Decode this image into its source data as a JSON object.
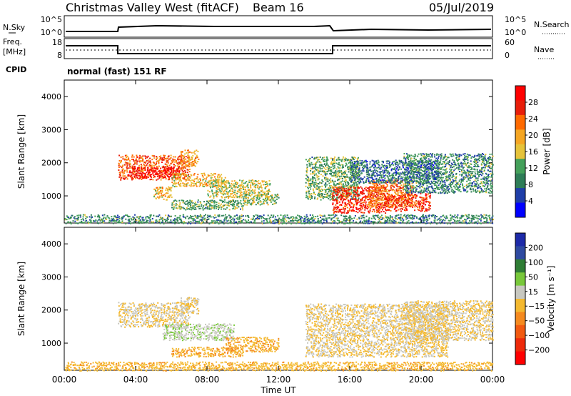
{
  "header": {
    "station": "Christmas Valley West (fitACF)",
    "beam": "Beam 16",
    "date": "05/Jul/2019"
  },
  "status_labels": {
    "nsky": "N.Sky",
    "nsearch": "N.Search",
    "freq_line1": "Freq.",
    "freq_line2": "[MHz]",
    "nave": "Nave",
    "cpid": "CPID",
    "cpid_value": "normal (fast) 151 RF"
  },
  "noise_panel": {
    "left_ticks": [
      "10^5",
      "10^0"
    ],
    "right_ticks": [
      "10^5",
      "10^0"
    ]
  },
  "freq_panel": {
    "left_ticks": [
      "18",
      "8"
    ],
    "right_ticks": [
      "60",
      "0"
    ]
  },
  "colors": {
    "power_scale": [
      "#0000ff",
      "#1f3ea8",
      "#2e7d57",
      "#44a05a",
      "#e6c33a",
      "#f5a623",
      "#ff6a00",
      "#e81e0a",
      "#ff0000"
    ],
    "velocity_scale": [
      "#1d2aa8",
      "#2e4aa0",
      "#2f7d35",
      "#78c83a",
      "#c8c8c0",
      "#f4b930",
      "#f58a1f",
      "#f25a10",
      "#ee2a0a",
      "#ff0000"
    ]
  },
  "chart_data": [
    {
      "type": "heatmap",
      "quantity": "Power",
      "ylabel": "Slant Range [km]",
      "xlabel": "",
      "x_ticks": [
        "00:00",
        "04:00",
        "08:00",
        "12:00",
        "16:00",
        "20:00",
        "00:00"
      ],
      "xlim_hours": [
        0,
        24
      ],
      "y_ticks": [
        1000,
        2000,
        3000,
        4000
      ],
      "ylim": [
        180,
        4500
      ],
      "colorbar": {
        "label": "Power [dB]",
        "ticks": [
          4,
          8,
          12,
          16,
          20,
          24,
          28
        ],
        "range": [
          0,
          32
        ]
      },
      "regions": [
        {
          "t_start": 3.0,
          "t_end": 7.0,
          "r_low": 1500,
          "r_high": 2250,
          "value": 24
        },
        {
          "t_start": 3.5,
          "t_end": 6.5,
          "r_low": 1550,
          "r_high": 1900,
          "value": 30
        },
        {
          "t_start": 6.0,
          "t_end": 9.0,
          "r_low": 1300,
          "r_high": 1700,
          "value": 18
        },
        {
          "t_start": 8.0,
          "t_end": 11.5,
          "r_low": 950,
          "r_high": 1500,
          "value": 16
        },
        {
          "t_start": 10.0,
          "t_end": 12.0,
          "r_low": 750,
          "r_high": 1100,
          "value": 14
        },
        {
          "t_start": 5.0,
          "t_end": 6.0,
          "r_low": 900,
          "r_high": 1300,
          "value": 18
        },
        {
          "t_start": 6.0,
          "t_end": 10.0,
          "r_low": 600,
          "r_high": 900,
          "value": 12
        },
        {
          "t_start": 0.0,
          "t_end": 24.0,
          "r_low": 180,
          "r_high": 450,
          "value": 10
        },
        {
          "t_start": 6.5,
          "t_end": 7.5,
          "r_low": 1900,
          "r_high": 2400,
          "value": 20
        },
        {
          "t_start": 13.5,
          "t_end": 16.5,
          "r_low": 900,
          "r_high": 2200,
          "value": 12
        },
        {
          "t_start": 15.0,
          "t_end": 18.0,
          "r_low": 500,
          "r_high": 1300,
          "value": 27
        },
        {
          "t_start": 17.0,
          "t_end": 19.5,
          "r_low": 700,
          "r_high": 1500,
          "value": 22
        },
        {
          "t_start": 18.0,
          "t_end": 20.5,
          "r_low": 550,
          "r_high": 1100,
          "value": 26
        },
        {
          "t_start": 19.0,
          "t_end": 24.0,
          "r_low": 1100,
          "r_high": 2300,
          "value": 10
        },
        {
          "t_start": 16.0,
          "t_end": 21.0,
          "r_low": 1400,
          "r_high": 2100,
          "value": 8
        }
      ]
    },
    {
      "type": "heatmap",
      "quantity": "Velocity",
      "ylabel": "Slant Range [km]",
      "xlabel": "Time UT",
      "x_ticks": [
        "00:00",
        "04:00",
        "08:00",
        "12:00",
        "16:00",
        "20:00",
        "00:00"
      ],
      "xlim_hours": [
        0,
        24
      ],
      "y_ticks": [
        1000,
        2000,
        3000,
        4000
      ],
      "ylim": [
        180,
        4500
      ],
      "colorbar": {
        "label": "Velocity [m s⁻¹]",
        "ticks": [
          "200",
          "100",
          "50",
          "15",
          "−15",
          "−50",
          "−100",
          "−200"
        ],
        "range": [
          -250,
          250
        ]
      },
      "regions": [
        {
          "t_start": 3.0,
          "t_end": 7.0,
          "r_low": 1500,
          "r_high": 2250,
          "value": 0
        },
        {
          "t_start": 6.5,
          "t_end": 7.5,
          "r_low": 1900,
          "r_high": 2400,
          "value": 0
        },
        {
          "t_start": 5.5,
          "t_end": 9.5,
          "r_low": 1100,
          "r_high": 1600,
          "value": 40
        },
        {
          "t_start": 9.0,
          "t_end": 12.0,
          "r_low": 750,
          "r_high": 1200,
          "value": -40
        },
        {
          "t_start": 6.0,
          "t_end": 10.0,
          "r_low": 600,
          "r_high": 900,
          "value": -40
        },
        {
          "t_start": 0.0,
          "t_end": 24.0,
          "r_low": 180,
          "r_high": 450,
          "value": -30
        },
        {
          "t_start": 13.5,
          "t_end": 21.5,
          "r_low": 600,
          "r_high": 2200,
          "value": 0
        },
        {
          "t_start": 19.0,
          "t_end": 24.0,
          "r_low": 1100,
          "r_high": 2300,
          "value": 0
        }
      ]
    }
  ]
}
